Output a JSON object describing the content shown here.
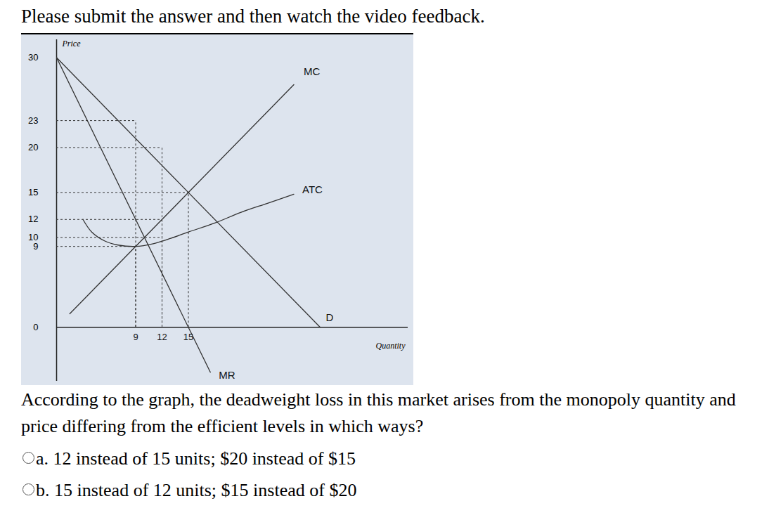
{
  "header": "Please submit the answer and then watch the video feedback.",
  "chart_data": {
    "type": "line",
    "y_label": "Price",
    "x_label": "Quantity",
    "xlim": [
      0,
      40
    ],
    "ylim": [
      -6,
      32
    ],
    "xticks": [
      9,
      12,
      15
    ],
    "yticks": [
      0,
      9,
      10,
      12,
      15,
      20,
      23,
      30
    ],
    "color": "#333333",
    "series": [
      {
        "name": "MC",
        "x": [
          1.5,
          27
        ],
        "values": [
          1.5,
          27
        ]
      },
      {
        "name": "ATC",
        "x": [
          3,
          4,
          5.5,
          7,
          9,
          11,
          13,
          15,
          18,
          21,
          24,
          27
        ],
        "values": [
          12,
          10.6,
          9.6,
          9.15,
          9,
          9.3,
          9.9,
          10.6,
          11.6,
          12.8,
          13.8,
          14.8
        ]
      },
      {
        "name": "D",
        "x": [
          0,
          30
        ],
        "values": [
          30,
          0
        ]
      },
      {
        "name": "MR",
        "x": [
          0,
          17.5
        ],
        "values": [
          30,
          -5
        ]
      }
    ],
    "guides": [
      {
        "x": 9,
        "y": 23
      },
      {
        "x": 12,
        "y": 20
      },
      {
        "x": 15,
        "y": 15
      },
      {
        "x": 12,
        "y": 12
      },
      {
        "x": 12,
        "y": 10
      },
      {
        "x": 9,
        "y": 9
      }
    ]
  },
  "question": "According to the graph, the deadweight loss in this market arises from the monopoly quantity and price differing from the efficient levels in which ways?",
  "options": [
    "a. 12 instead of 15 units; $20 instead of $15",
    "b. 15 instead of 12 units; $15 instead of $20"
  ]
}
